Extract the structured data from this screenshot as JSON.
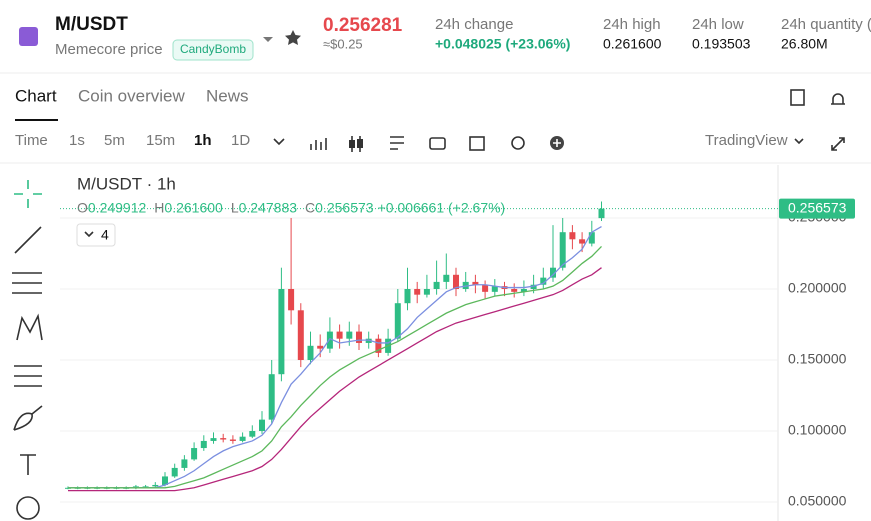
{
  "header": {
    "symbol": "M/USDT",
    "name": "Memecore price",
    "tag": "CandyBomb",
    "price": "0.256281",
    "price_usd": "≈$0.25",
    "stats": [
      {
        "label": "24h change",
        "value": "+0.048025 (+23.06%)"
      },
      {
        "label": "24h high",
        "value": "0.261600"
      },
      {
        "label": "24h low",
        "value": "0.193503"
      },
      {
        "label": "24h quantity (",
        "value": "26.80M"
      }
    ]
  },
  "tabs": [
    "Chart",
    "Coin overview",
    "News"
  ],
  "toolbar": {
    "intervals": [
      "Time",
      "1s",
      "5m",
      "15m",
      "1h",
      "1D"
    ],
    "provider": "TradingView"
  },
  "chart_data": {
    "type": "candlestick",
    "title": "M/USDT · 1h",
    "indicator_count": "4",
    "legend": [
      {
        "label": "O",
        "value": "0.249912"
      },
      {
        "label": "H",
        "value": "0.261600"
      },
      {
        "label": "L",
        "value": "0.247883"
      },
      {
        "label": "C",
        "value": "0.256573"
      }
    ],
    "change": "+0.006661 (+2.67%)",
    "up_color": "#2ebd85",
    "down_color": "#e6484d",
    "open": [
      0.06,
      0.06,
      0.06,
      0.06,
      0.06,
      0.06,
      0.06,
      0.06,
      0.061,
      0.061,
      0.062,
      0.068,
      0.074,
      0.08,
      0.088,
      0.093,
      0.095,
      0.094,
      0.093,
      0.096,
      0.1,
      0.108,
      0.14,
      0.2,
      0.185,
      0.15,
      0.16,
      0.158,
      0.17,
      0.165,
      0.17,
      0.162,
      0.165,
      0.155,
      0.165,
      0.19,
      0.2,
      0.196,
      0.2,
      0.205,
      0.21,
      0.2,
      0.205,
      0.203,
      0.198,
      0.202,
      0.2,
      0.198,
      0.2,
      0.203,
      0.208,
      0.215,
      0.24,
      0.235,
      0.232,
      0.249912
    ],
    "high": [
      0.061,
      0.061,
      0.061,
      0.061,
      0.061,
      0.061,
      0.061,
      0.062,
      0.062,
      0.064,
      0.071,
      0.077,
      0.083,
      0.092,
      0.097,
      0.099,
      0.098,
      0.097,
      0.099,
      0.104,
      0.114,
      0.15,
      0.215,
      0.25,
      0.19,
      0.17,
      0.168,
      0.18,
      0.175,
      0.177,
      0.175,
      0.17,
      0.168,
      0.172,
      0.2,
      0.215,
      0.205,
      0.21,
      0.22,
      0.225,
      0.215,
      0.212,
      0.21,
      0.206,
      0.207,
      0.205,
      0.204,
      0.206,
      0.21,
      0.215,
      0.245,
      0.25,
      0.245,
      0.24,
      0.248,
      0.2616
    ],
    "low": [
      0.059,
      0.059,
      0.059,
      0.059,
      0.059,
      0.059,
      0.059,
      0.059,
      0.06,
      0.06,
      0.061,
      0.067,
      0.072,
      0.079,
      0.086,
      0.091,
      0.092,
      0.091,
      0.092,
      0.095,
      0.098,
      0.105,
      0.135,
      0.175,
      0.145,
      0.147,
      0.152,
      0.155,
      0.158,
      0.16,
      0.157,
      0.158,
      0.152,
      0.153,
      0.163,
      0.185,
      0.19,
      0.194,
      0.196,
      0.2,
      0.195,
      0.198,
      0.197,
      0.193,
      0.195,
      0.195,
      0.194,
      0.195,
      0.197,
      0.2,
      0.205,
      0.213,
      0.228,
      0.226,
      0.23,
      0.247883
    ],
    "close": [
      0.06,
      0.06,
      0.06,
      0.06,
      0.06,
      0.06,
      0.06,
      0.061,
      0.061,
      0.062,
      0.068,
      0.074,
      0.08,
      0.088,
      0.093,
      0.095,
      0.094,
      0.093,
      0.096,
      0.1,
      0.108,
      0.14,
      0.2,
      0.185,
      0.15,
      0.16,
      0.158,
      0.17,
      0.165,
      0.17,
      0.162,
      0.165,
      0.155,
      0.165,
      0.19,
      0.2,
      0.196,
      0.2,
      0.205,
      0.21,
      0.2,
      0.205,
      0.203,
      0.198,
      0.202,
      0.2,
      0.198,
      0.2,
      0.203,
      0.208,
      0.215,
      0.24,
      0.235,
      0.232,
      0.24,
      0.256573
    ],
    "moving_averages": [
      {
        "color": "#7b8fe0",
        "values": [
          0.06,
          0.06,
          0.06,
          0.06,
          0.06,
          0.06,
          0.06,
          0.06,
          0.06,
          0.06,
          0.062,
          0.065,
          0.068,
          0.072,
          0.077,
          0.082,
          0.086,
          0.089,
          0.091,
          0.093,
          0.097,
          0.105,
          0.12,
          0.133,
          0.14,
          0.148,
          0.155,
          0.165,
          0.162,
          0.163,
          0.164,
          0.164,
          0.162,
          0.162,
          0.166,
          0.172,
          0.18,
          0.186,
          0.192,
          0.198,
          0.201,
          0.202,
          0.203,
          0.203,
          0.202,
          0.201,
          0.201,
          0.201,
          0.202,
          0.204,
          0.21,
          0.217,
          0.222,
          0.228,
          0.24,
          0.244
        ]
      },
      {
        "color": "#5cb85c",
        "values": [
          0.06,
          0.06,
          0.06,
          0.06,
          0.06,
          0.06,
          0.06,
          0.06,
          0.06,
          0.06,
          0.06,
          0.061,
          0.063,
          0.065,
          0.067,
          0.07,
          0.073,
          0.076,
          0.079,
          0.082,
          0.086,
          0.093,
          0.103,
          0.11,
          0.118,
          0.125,
          0.132,
          0.138,
          0.143,
          0.147,
          0.151,
          0.154,
          0.157,
          0.16,
          0.163,
          0.167,
          0.171,
          0.175,
          0.179,
          0.183,
          0.186,
          0.189,
          0.191,
          0.193,
          0.195,
          0.196,
          0.197,
          0.198,
          0.199,
          0.2,
          0.202,
          0.206,
          0.212,
          0.218,
          0.223,
          0.23
        ]
      },
      {
        "color": "#b5267a",
        "values": [
          0.058,
          0.058,
          0.058,
          0.058,
          0.058,
          0.058,
          0.058,
          0.058,
          0.058,
          0.058,
          0.058,
          0.058,
          0.059,
          0.06,
          0.062,
          0.064,
          0.066,
          0.068,
          0.07,
          0.072,
          0.075,
          0.08,
          0.087,
          0.095,
          0.103,
          0.11,
          0.116,
          0.122,
          0.128,
          0.133,
          0.138,
          0.142,
          0.146,
          0.15,
          0.154,
          0.158,
          0.162,
          0.166,
          0.17,
          0.173,
          0.176,
          0.178,
          0.18,
          0.182,
          0.184,
          0.186,
          0.188,
          0.19,
          0.192,
          0.194,
          0.196,
          0.199,
          0.203,
          0.207,
          0.21,
          0.215
        ]
      }
    ],
    "last_price": {
      "value": 0.256573,
      "label": "0.256573"
    },
    "ylim": [
      0.03662,
      0.28732
    ],
    "yticks": [
      {
        "value": 0.05,
        "label": "0.050000"
      },
      {
        "value": 0.1,
        "label": "0.100000"
      },
      {
        "value": 0.15,
        "label": "0.150000"
      },
      {
        "value": 0.2,
        "label": "0.200000"
      },
      {
        "value": 0.25,
        "label": "0.250000"
      }
    ],
    "grid": true
  }
}
